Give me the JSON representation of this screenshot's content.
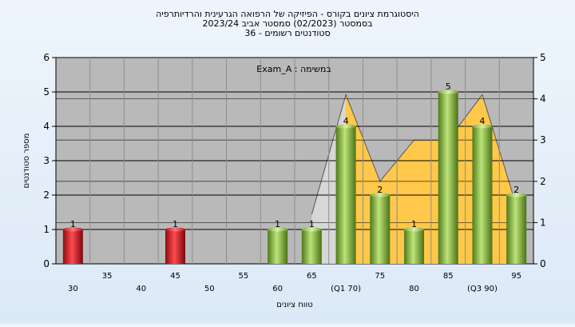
{
  "chart_data": {
    "type": "bar",
    "title_lines": [
      "היסטוגרמת ציונים בקורס - הפיזיקה של הרפואה הגרעינית והרדיותרפיה",
      "בסמסטר  (02/2023)  סמסטר אביב 2023/24",
      "סטודנטים רשומים - 36"
    ],
    "caption": "במשימה : Exam_A",
    "ylabel": "מספר סטודנטים",
    "xlabel": "טווח ציונים",
    "ylim": [
      0,
      6
    ],
    "ylim_right": [
      0,
      5
    ],
    "yticks": [
      0,
      1,
      2,
      3,
      4,
      5,
      6
    ],
    "yticks_right": [
      0,
      1,
      2,
      3,
      4,
      5
    ],
    "categories": [
      "30",
      "35",
      "40",
      "45",
      "50",
      "55",
      "60",
      "65",
      "(Q1 70)",
      "75",
      "80",
      "85",
      "(Q3 90)",
      "95"
    ],
    "x_values": [
      30,
      35,
      40,
      45,
      50,
      55,
      60,
      65,
      70,
      75,
      80,
      85,
      90,
      95
    ],
    "values": [
      1,
      0,
      0,
      1,
      0,
      0,
      1,
      1,
      4,
      2,
      1,
      5,
      4,
      2
    ],
    "data_labels": [
      "1",
      "",
      "",
      "1",
      "",
      "",
      "1",
      "1",
      "4",
      "2",
      "1",
      "5",
      "4",
      "2"
    ],
    "bar_colors": [
      "red",
      "none",
      "none",
      "red",
      "none",
      "none",
      "green",
      "green",
      "green",
      "green",
      "green",
      "green",
      "green",
      "green"
    ],
    "area_right_values": [
      [
        65,
        0
      ],
      [
        65,
        1.2
      ],
      [
        70,
        4.1
      ],
      [
        75,
        2.0
      ],
      [
        80,
        3.0
      ],
      [
        85,
        3.0
      ],
      [
        90,
        4.1
      ],
      [
        95,
        1.4
      ],
      [
        95,
        0
      ]
    ],
    "grid": true,
    "colors": {
      "plot_bg": "#b9b9b9",
      "grid": "#000000",
      "red_bar": "#e8202a",
      "green_bar": "#8cc63f",
      "area": "#ffc84a",
      "area_gray": "#dcdcdc"
    }
  }
}
